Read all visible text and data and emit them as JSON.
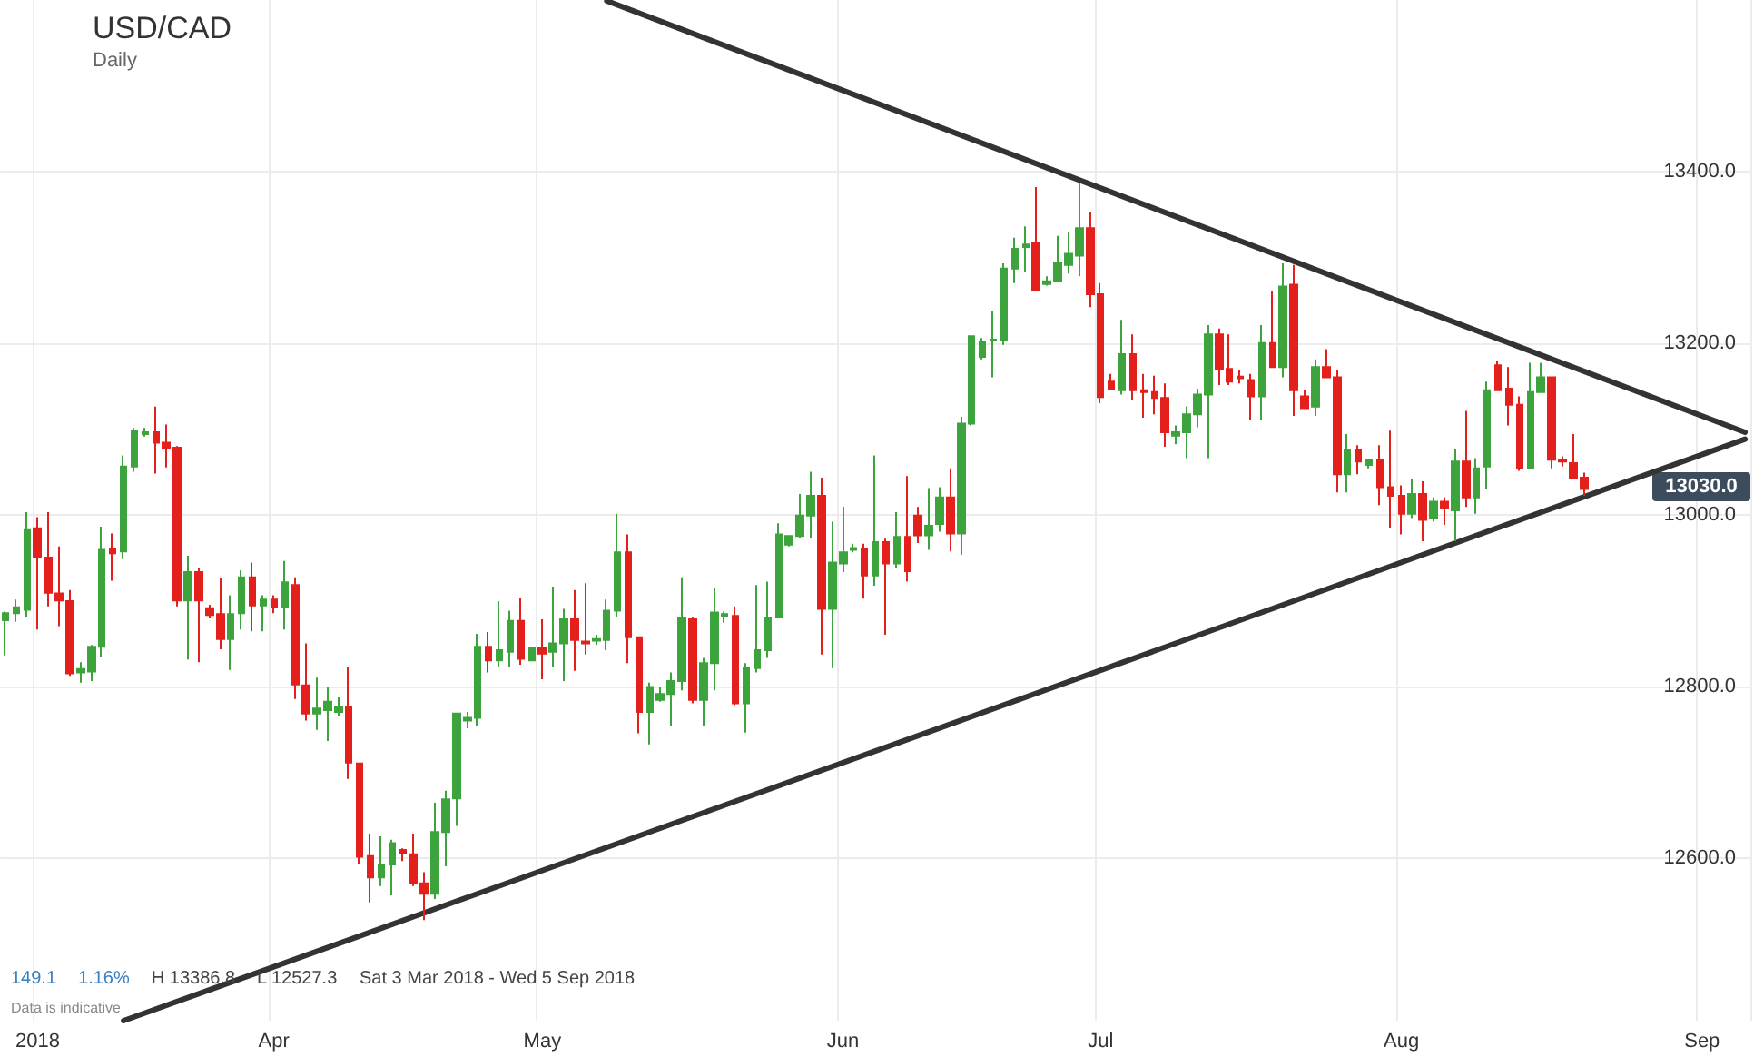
{
  "chart_data": {
    "type": "candlestick",
    "title": "USD/CAD",
    "subtitle": "Daily",
    "categories": [
      null,
      null,
      null,
      "2018",
      null,
      null,
      null,
      null,
      null,
      null,
      null,
      null,
      null,
      null,
      null,
      null,
      null,
      null,
      null,
      null,
      null,
      null,
      null,
      null,
      null,
      "Apr",
      null,
      null,
      null,
      null,
      null,
      null,
      null,
      null,
      null,
      null,
      null,
      null,
      null,
      null,
      null,
      null,
      null,
      null,
      null,
      null,
      null,
      null,
      null,
      null,
      "May",
      null,
      null,
      null,
      null,
      null,
      null,
      null,
      null,
      null,
      null,
      null,
      null,
      null,
      null,
      null,
      null,
      null,
      null,
      null,
      null,
      null,
      null,
      null,
      null,
      null,
      null,
      null,
      "Jun",
      null,
      null,
      null,
      null,
      null,
      null,
      null,
      null,
      null,
      null,
      null,
      null,
      null,
      null,
      null,
      null,
      null,
      null,
      null,
      null,
      null,
      null,
      null,
      "Jul",
      null,
      null,
      null,
      null,
      null,
      null,
      null,
      null,
      null,
      null,
      null,
      null,
      null,
      null,
      null,
      null,
      null,
      null,
      null,
      null,
      null,
      null,
      null,
      null,
      null,
      null,
      null,
      "Aug",
      null,
      null,
      null,
      null,
      null,
      null,
      null,
      null,
      null,
      null,
      null,
      null,
      null,
      null,
      null,
      null,
      null,
      null,
      null,
      null,
      null,
      null,
      null,
      null,
      null,
      null,
      null,
      "Sep",
      null,
      null,
      null,
      null
    ],
    "ohlc": [
      [
        12877,
        12887,
        12836,
        12885
      ],
      [
        12885,
        12901,
        12875,
        12892
      ],
      [
        12889,
        13003,
        12880,
        12982
      ],
      [
        12984,
        12997,
        12866,
        12950
      ],
      [
        12950,
        13003,
        12893,
        12909
      ],
      [
        12908,
        12963,
        12870,
        12900
      ],
      [
        12899,
        12912,
        12812,
        12815
      ],
      [
        12816,
        12828,
        12804,
        12820
      ],
      [
        12817,
        12848,
        12806,
        12846
      ],
      [
        12846,
        12986,
        12834,
        12959
      ],
      [
        12960,
        12978,
        12923,
        12955
      ],
      [
        12957,
        13069,
        12948,
        13056
      ],
      [
        13056,
        13101,
        13050,
        13098
      ],
      [
        13094,
        13101,
        13091,
        13096
      ],
      [
        13096,
        13126,
        13048,
        13084
      ],
      [
        13084,
        13105,
        13055,
        13078
      ],
      [
        13078,
        13080,
        12893,
        12900
      ],
      [
        12900,
        12952,
        12831,
        12933
      ],
      [
        12933,
        12938,
        12828,
        12900
      ],
      [
        12891,
        12895,
        12879,
        12883
      ],
      [
        12884,
        12926,
        12843,
        12855
      ],
      [
        12855,
        12906,
        12819,
        12884
      ],
      [
        12885,
        12935,
        12866,
        12927
      ],
      [
        12927,
        12944,
        12864,
        12894
      ],
      [
        12894,
        12906,
        12864,
        12901
      ],
      [
        12901,
        12906,
        12885,
        12892
      ],
      [
        12892,
        12946,
        12866,
        12921
      ],
      [
        12918,
        12927,
        12785,
        12802
      ],
      [
        12801,
        12850,
        12760,
        12768
      ],
      [
        12768,
        12810,
        12749,
        12774
      ],
      [
        12772,
        12799,
        12736,
        12782
      ],
      [
        12770,
        12787,
        12765,
        12776
      ],
      [
        12776,
        12823,
        12692,
        12711
      ],
      [
        12710,
        12710,
        12592,
        12601
      ],
      [
        12602,
        12628,
        12548,
        12577
      ],
      [
        12577,
        12625,
        12567,
        12591
      ],
      [
        12592,
        12621,
        12556,
        12617
      ],
      [
        12609,
        12611,
        12596,
        12605
      ],
      [
        12604,
        12628,
        12567,
        12571
      ],
      [
        12570,
        12583,
        12527.3,
        12558
      ],
      [
        12558,
        12664,
        12552,
        12630
      ],
      [
        12630,
        12678,
        12590,
        12668
      ],
      [
        12669,
        12768,
        12637,
        12768
      ],
      [
        12760,
        12770,
        12751,
        12763
      ],
      [
        12763,
        12861,
        12753,
        12846
      ],
      [
        12846,
        12863,
        12816,
        12830
      ],
      [
        12830,
        12899,
        12823,
        12842
      ],
      [
        12840,
        12888,
        12823,
        12876
      ],
      [
        12876,
        12903,
        12825,
        12832
      ],
      [
        12830,
        12846,
        12829,
        12844
      ],
      [
        12844,
        12878,
        12808,
        12838
      ],
      [
        12840,
        12916,
        12823,
        12850
      ],
      [
        12850,
        12890,
        12806,
        12878
      ],
      [
        12878,
        12912,
        12818,
        12854
      ],
      [
        12852,
        12920,
        12837,
        12850
      ],
      [
        12853,
        12860,
        12848,
        12855
      ],
      [
        12854,
        12901,
        12842,
        12888
      ],
      [
        12888,
        13001,
        12880,
        12956
      ],
      [
        12956,
        12977,
        12827,
        12857
      ],
      [
        12857,
        12857,
        12745,
        12770
      ],
      [
        12770,
        12804,
        12732,
        12799
      ],
      [
        12784,
        12799,
        12782,
        12791
      ],
      [
        12791,
        12816,
        12753,
        12806
      ],
      [
        12806,
        12927,
        12795,
        12880
      ],
      [
        12878,
        12880,
        12780,
        12784
      ],
      [
        12784,
        12833,
        12753,
        12827
      ],
      [
        12827,
        12914,
        12795,
        12886
      ],
      [
        12882,
        12887,
        12874,
        12884
      ],
      [
        12882,
        12893,
        12778,
        12780
      ],
      [
        12780,
        12827,
        12746,
        12821
      ],
      [
        12821,
        12918,
        12816,
        12842
      ],
      [
        12842,
        12922,
        12833,
        12880
      ],
      [
        12880,
        12990,
        12880,
        12977
      ],
      [
        12965,
        12975,
        12963,
        12975
      ],
      [
        12975,
        13024,
        12973,
        12999
      ],
      [
        12999,
        13050,
        12973,
        13022
      ],
      [
        13022,
        13043,
        12837,
        12890
      ],
      [
        12890,
        12992,
        12821,
        12944
      ],
      [
        12943,
        13009,
        12933,
        12956
      ],
      [
        12959,
        12966,
        12956,
        12961
      ],
      [
        12960,
        12966,
        12902,
        12929
      ],
      [
        12929,
        13069,
        12917,
        12968
      ],
      [
        12968,
        12972,
        12860,
        12943
      ],
      [
        12943,
        13003,
        12938,
        12974
      ],
      [
        12974,
        13045,
        12922,
        12934
      ],
      [
        12999,
        13009,
        12967,
        12976
      ],
      [
        12976,
        13031,
        12959,
        12987
      ],
      [
        12989,
        13032,
        12980,
        13020
      ],
      [
        13020,
        13054,
        12957,
        12978
      ],
      [
        12978,
        13114,
        12953,
        13106
      ],
      [
        13106,
        13208,
        13104,
        13208
      ],
      [
        13184,
        13206,
        13181,
        13201
      ],
      [
        13203,
        13238,
        13160,
        13204
      ],
      [
        13204,
        13293,
        13198,
        13287
      ],
      [
        13287,
        13323,
        13270,
        13310
      ],
      [
        13312,
        13336,
        13283,
        13315
      ],
      [
        13317,
        13382,
        13262,
        13262
      ],
      [
        13269,
        13278,
        13267,
        13272
      ],
      [
        13272,
        13325,
        13272,
        13293
      ],
      [
        13291,
        13329,
        13281,
        13304
      ],
      [
        13302,
        13386.8,
        13278,
        13334
      ],
      [
        13334,
        13353,
        13242,
        13257
      ],
      [
        13257,
        13270,
        13130,
        13137
      ],
      [
        13155,
        13164,
        13145,
        13146
      ],
      [
        13145,
        13227,
        13140,
        13187
      ],
      [
        13187,
        13210,
        13134,
        13145
      ],
      [
        13145,
        13164,
        13113,
        13143
      ],
      [
        13143,
        13162,
        13117,
        13136
      ],
      [
        13136,
        13153,
        13079,
        13096
      ],
      [
        13092,
        13104,
        13082,
        13096
      ],
      [
        13096,
        13126,
        13066,
        13117
      ],
      [
        13117,
        13147,
        13102,
        13140
      ],
      [
        13140,
        13221,
        13066,
        13210
      ],
      [
        13210,
        13217,
        13151,
        13170
      ],
      [
        13170,
        13210,
        13151,
        13155
      ],
      [
        13161,
        13168,
        13153,
        13159
      ],
      [
        13157,
        13164,
        13111,
        13138
      ],
      [
        13138,
        13221,
        13111,
        13200
      ],
      [
        13200,
        13261,
        13172,
        13172
      ],
      [
        13172,
        13293,
        13160,
        13266
      ],
      [
        13268,
        13291,
        13115,
        13145
      ],
      [
        13138,
        13145,
        13124,
        13124
      ],
      [
        13126,
        13181,
        13115,
        13172
      ],
      [
        13172,
        13193,
        13160,
        13160
      ],
      [
        13160,
        13168,
        13026,
        13047
      ],
      [
        13047,
        13094,
        13026,
        13075
      ],
      [
        13075,
        13081,
        13047,
        13062
      ],
      [
        13058,
        13064,
        13054,
        13064
      ],
      [
        13064,
        13081,
        13011,
        13032
      ],
      [
        13032,
        13098,
        12984,
        13022
      ],
      [
        13022,
        13034,
        12977,
        13001
      ],
      [
        13001,
        13041,
        12996,
        13024
      ],
      [
        13024,
        13039,
        12969,
        12994
      ],
      [
        12996,
        13020,
        12992,
        13015
      ],
      [
        13015,
        13020,
        12988,
        13007
      ],
      [
        13005,
        13077,
        12969,
        13062
      ],
      [
        13062,
        13121,
        13009,
        13020
      ],
      [
        13020,
        13066,
        13001,
        13054
      ],
      [
        13056,
        13155,
        13030,
        13145
      ],
      [
        13174,
        13179,
        13145,
        13145
      ],
      [
        13147,
        13172,
        13104,
        13128
      ],
      [
        13128,
        13138,
        13051,
        13054
      ],
      [
        13054,
        13177,
        13054,
        13143
      ],
      [
        13143,
        13177,
        13143,
        13160
      ],
      [
        13160,
        13160,
        13054,
        13064
      ],
      [
        13064,
        13068,
        13056,
        13062
      ],
      [
        13060,
        13094,
        13041,
        13043
      ],
      [
        13043,
        13049,
        13022,
        13030
      ],
      null,
      null,
      null,
      null,
      null,
      null,
      null,
      null,
      null,
      null,
      null,
      null,
      null,
      null,
      null
    ],
    "series": [
      {
        "type": "line",
        "color": "#333333",
        "values": [
          null,
          null,
          null,
          null,
          null,
          null,
          null,
          null,
          null,
          null,
          null,
          null,
          null,
          null,
          null,
          null,
          null,
          null,
          null,
          null,
          null,
          null,
          null,
          null,
          null,
          null,
          null,
          null,
          null,
          null,
          null,
          null,
          null,
          null,
          null,
          null,
          null,
          null,
          null,
          null,
          null,
          null,
          null,
          null,
          null,
          null,
          null,
          null,
          null,
          null,
          null,
          null,
          null,
          null,
          null,
          null,
          13599,
          null,
          null,
          null,
          null,
          null,
          null,
          null,
          null,
          null,
          null,
          null,
          null,
          null,
          null,
          null,
          null,
          null,
          null,
          null,
          null,
          null,
          null,
          null,
          null,
          null,
          null,
          null,
          null,
          null,
          null,
          null,
          null,
          null,
          null,
          null,
          null,
          null,
          null,
          null,
          null,
          null,
          null,
          null,
          null,
          null,
          null,
          null,
          null,
          null,
          null,
          null,
          null,
          null,
          null,
          null,
          null,
          null,
          null,
          null,
          null,
          null,
          null,
          null,
          null,
          null,
          null,
          null,
          null,
          null,
          null,
          null,
          null,
          null,
          null,
          null,
          null,
          null,
          null,
          null,
          null,
          null,
          null,
          null,
          null,
          null,
          null,
          null,
          null,
          null,
          null,
          null,
          null,
          null,
          null,
          null,
          null,
          null,
          null,
          null,
          null,
          null,
          null,
          null,
          null,
          null,
          13096
        ]
      },
      {
        "type": "line",
        "color": "#333333",
        "values": [
          null,
          null,
          null,
          null,
          null,
          null,
          null,
          null,
          null,
          null,
          null,
          12410,
          null,
          null,
          null,
          null,
          null,
          null,
          null,
          null,
          null,
          null,
          null,
          null,
          null,
          null,
          null,
          null,
          null,
          null,
          null,
          null,
          null,
          null,
          null,
          null,
          null,
          null,
          null,
          null,
          null,
          null,
          null,
          null,
          null,
          null,
          null,
          null,
          null,
          null,
          null,
          null,
          null,
          null,
          null,
          null,
          null,
          null,
          null,
          null,
          null,
          null,
          null,
          null,
          null,
          null,
          null,
          null,
          null,
          null,
          null,
          null,
          null,
          null,
          null,
          null,
          null,
          null,
          null,
          null,
          null,
          null,
          null,
          null,
          null,
          null,
          null,
          null,
          null,
          null,
          null,
          null,
          null,
          null,
          null,
          null,
          null,
          null,
          null,
          null,
          null,
          null,
          null,
          null,
          null,
          null,
          null,
          null,
          null,
          null,
          null,
          null,
          null,
          null,
          null,
          null,
          null,
          null,
          null,
          null,
          null,
          null,
          null,
          null,
          null,
          null,
          null,
          null,
          null,
          null,
          null,
          null,
          null,
          null,
          null,
          null,
          null,
          null,
          null,
          null,
          null,
          null,
          null,
          null,
          null,
          null,
          null,
          null,
          null,
          null,
          null,
          null,
          null,
          null,
          null,
          null,
          null,
          null,
          null,
          null,
          null,
          null,
          13088
        ]
      }
    ],
    "ylim": [
      12410,
      13600
    ],
    "yticks": [
      {
        "value": 12600,
        "label": "12600.0"
      },
      {
        "value": 12800,
        "label": "12800.0"
      },
      {
        "value": 13000,
        "label": "13000.0"
      },
      {
        "value": 13200,
        "label": "13200.0"
      },
      {
        "value": 13400,
        "label": "13400.0"
      }
    ],
    "grid": true,
    "annotations": [
      "149.1",
      "1.16%",
      "H 13386.8",
      "L 12527.3",
      "Sat 3 Mar 2018 - Wed 5 Sep 2018",
      "Data is indicative",
      "13030.0"
    ]
  }
}
